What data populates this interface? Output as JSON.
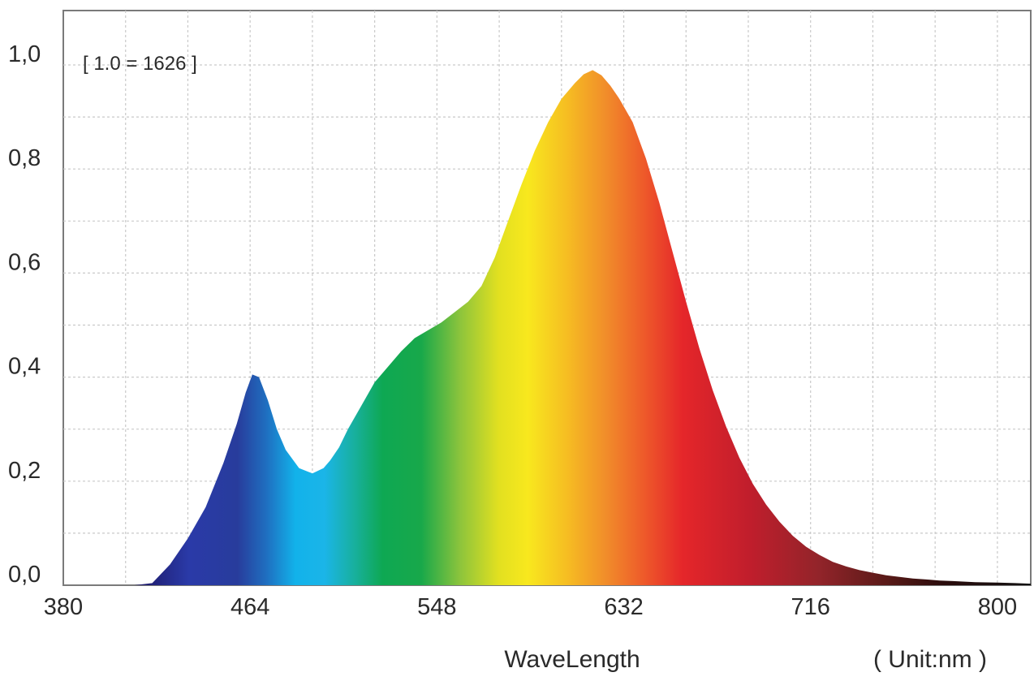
{
  "chart_data": {
    "type": "area",
    "title": "",
    "annotation": "[ 1.0 = 1626 ]",
    "xlabel": "WaveLength",
    "unit_label": "( Unit:nm )",
    "ylabel": "",
    "xlim": [
      380,
      815
    ],
    "ylim": [
      0,
      1.0
    ],
    "x_ticks": [
      {
        "value": 380,
        "label": "380"
      },
      {
        "value": 464,
        "label": "464"
      },
      {
        "value": 548,
        "label": "548"
      },
      {
        "value": 632,
        "label": "632"
      },
      {
        "value": 716,
        "label": "716"
      },
      {
        "value": 800,
        "label": "800"
      }
    ],
    "y_ticks": [
      {
        "value": 0.0,
        "label": "0,0"
      },
      {
        "value": 0.2,
        "label": "0,2"
      },
      {
        "value": 0.4,
        "label": "0,4"
      },
      {
        "value": 0.6,
        "label": "0,6"
      },
      {
        "value": 0.8,
        "label": "0,8"
      },
      {
        "value": 1.0,
        "label": "1,0"
      }
    ],
    "grid": true,
    "fill": "visible-spectrum gradient",
    "series": [
      {
        "x": [
          380,
          405,
          412,
          420,
          428,
          436,
          444,
          452,
          458,
          462,
          465,
          468,
          472,
          476,
          480,
          486,
          492,
          497,
          500,
          504,
          508,
          514,
          520,
          526,
          532,
          538,
          544,
          550,
          556,
          562,
          568,
          574,
          580,
          586,
          592,
          598,
          604,
          610,
          614,
          618,
          622,
          626,
          630,
          636,
          642,
          648,
          654,
          660,
          666,
          672,
          678,
          684,
          690,
          696,
          702,
          708,
          714,
          720,
          726,
          732,
          738,
          744,
          750,
          756,
          762,
          768,
          774,
          780,
          790,
          800,
          808,
          815
        ],
        "y": [
          0.0,
          0.0,
          0.0,
          0.004,
          0.04,
          0.09,
          0.15,
          0.235,
          0.31,
          0.37,
          0.405,
          0.4,
          0.355,
          0.3,
          0.26,
          0.225,
          0.215,
          0.225,
          0.24,
          0.265,
          0.3,
          0.345,
          0.39,
          0.42,
          0.45,
          0.475,
          0.49,
          0.505,
          0.525,
          0.545,
          0.575,
          0.63,
          0.7,
          0.77,
          0.835,
          0.89,
          0.935,
          0.965,
          0.982,
          0.99,
          0.98,
          0.96,
          0.935,
          0.89,
          0.82,
          0.735,
          0.64,
          0.545,
          0.455,
          0.375,
          0.305,
          0.245,
          0.195,
          0.155,
          0.122,
          0.095,
          0.074,
          0.058,
          0.045,
          0.036,
          0.029,
          0.024,
          0.019,
          0.016,
          0.013,
          0.011,
          0.009,
          0.008,
          0.006,
          0.005,
          0.004,
          0.003
        ]
      }
    ]
  }
}
